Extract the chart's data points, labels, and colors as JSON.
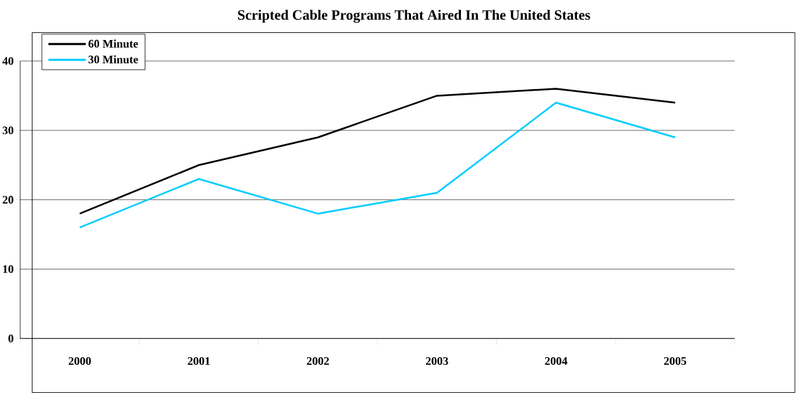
{
  "chart_data": {
    "type": "line",
    "title": "Scripted Cable Programs That Aired In The United States",
    "categories": [
      "2000",
      "2001",
      "2002",
      "2003",
      "2004",
      "2005"
    ],
    "series": [
      {
        "name": "60 Minute",
        "color": "#000000",
        "values": [
          18,
          25,
          29,
          35,
          36,
          34
        ]
      },
      {
        "name": "30 Minute",
        "color": "#00ccff",
        "values": [
          16,
          23,
          18,
          21,
          34,
          29
        ]
      }
    ],
    "ylim": [
      0,
      40
    ],
    "yticks": [
      0,
      10,
      20,
      30,
      40
    ],
    "grid": "y",
    "legend": "top left",
    "marker": "none",
    "line_style": "solid"
  }
}
